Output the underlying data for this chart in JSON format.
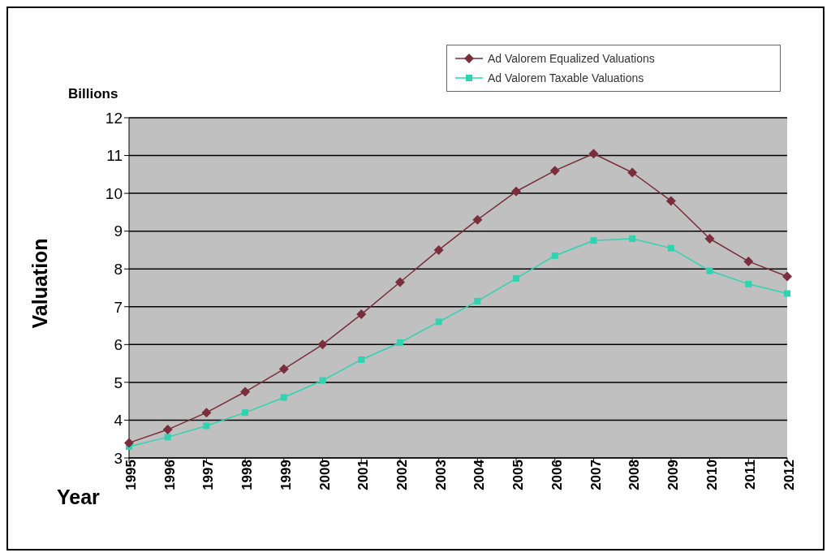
{
  "chart_data": {
    "type": "line",
    "xlabel": "Year",
    "ylabel": "Valuation",
    "annotations": [
      "Billions"
    ],
    "categories": [
      "1995",
      "1996",
      "1997",
      "1998",
      "1999",
      "2000",
      "2001",
      "2002",
      "2003",
      "2004",
      "2005",
      "2006",
      "2007",
      "2008",
      "2009",
      "2010",
      "2011",
      "2012"
    ],
    "series": [
      {
        "name": "Ad Valorem Equalized Valuations",
        "color": "#7a2e3c",
        "marker": "diamond",
        "values": [
          3.4,
          3.75,
          4.2,
          4.75,
          5.35,
          6.0,
          6.8,
          7.65,
          8.5,
          9.3,
          10.05,
          10.6,
          11.05,
          10.55,
          9.8,
          8.8,
          8.2,
          7.8
        ]
      },
      {
        "name": "Ad Valorem Taxable Valuations",
        "color": "#2ed3b0",
        "marker": "square",
        "values": [
          3.3,
          3.55,
          3.85,
          4.2,
          4.6,
          5.05,
          5.6,
          6.05,
          6.6,
          7.15,
          7.75,
          8.35,
          8.75,
          8.8,
          8.55,
          7.95,
          7.6,
          7.35
        ]
      }
    ],
    "ylim": [
      3,
      12
    ],
    "yticks": [
      3,
      4,
      5,
      6,
      7,
      8,
      9,
      10,
      11,
      12
    ],
    "grid": "y",
    "legend": "top right",
    "line_style": "solid"
  }
}
